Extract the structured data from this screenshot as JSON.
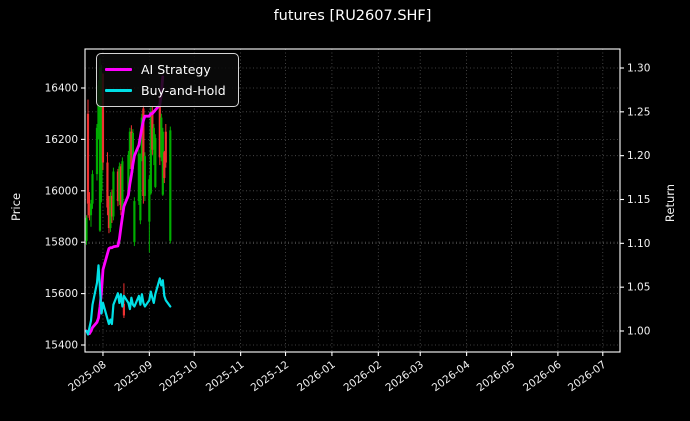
{
  "title": "futures [RU2607.SHF]",
  "legend": [
    {
      "label": "AI Strategy",
      "color": "#ff00ff"
    },
    {
      "label": "Buy-and-Hold",
      "color": "#00e0e6"
    }
  ],
  "axes": {
    "left_label": "Price",
    "right_label": "Return",
    "price_ticks": [
      "15400",
      "15600",
      "15800",
      "16000",
      "16200",
      "16400"
    ],
    "return_ticks": [
      "1.00",
      "1.05",
      "1.10",
      "1.15",
      "1.20",
      "1.25",
      "1.30"
    ],
    "x_ticks": [
      "2025-08",
      "2025-09",
      "2025-10",
      "2025-11",
      "2025-12",
      "2026-01",
      "2026-02",
      "2026-03",
      "2026-04",
      "2026-05",
      "2026-06",
      "2026-07"
    ]
  },
  "colors": {
    "background": "#000000",
    "spine": "#ffffff",
    "grid": "#5c5c5c",
    "candle_up": "#00ad00",
    "candle_down": "#f03131",
    "ai_strategy": "#ff00ff",
    "buy_and_hold": "#00e0e6",
    "text": "#f2f2f2"
  },
  "chart_data": {
    "type": "candlestick+line",
    "title": "futures [RU2607.SHF]",
    "xlabel": "",
    "ylabel_left": "Price",
    "ylabel_right": "Return",
    "grid": true,
    "legend_position": "upper left",
    "xlim": [
      "2025-07-20",
      "2026-07-12"
    ],
    "ylim_price": [
      15372,
      16552
    ],
    "ylim_return": [
      0.976,
      1.322
    ],
    "candles_ohlc": [
      [
        "2025-07-21",
        15805,
        15905,
        15790,
        15895
      ],
      [
        "2025-07-22",
        16300,
        16355,
        15895,
        15950
      ],
      [
        "2025-07-23",
        15950,
        15995,
        15885,
        15905
      ],
      [
        "2025-07-24",
        15905,
        15965,
        15860,
        15950
      ],
      [
        "2025-07-25",
        15950,
        16080,
        15930,
        16065
      ],
      [
        "2025-07-28",
        16065,
        16260,
        16040,
        16245
      ],
      [
        "2025-07-29",
        16245,
        16430,
        16200,
        16410
      ],
      [
        "2025-07-30",
        15845,
        16515,
        15840,
        16480
      ],
      [
        "2025-07-31",
        16000,
        16490,
        15955,
        16455
      ],
      [
        "2025-08-01",
        16455,
        16460,
        16080,
        16110
      ],
      [
        "2025-08-04",
        16110,
        16150,
        15905,
        15935
      ],
      [
        "2025-08-05",
        15935,
        15980,
        15835,
        15855
      ],
      [
        "2025-08-06",
        15855,
        15995,
        15840,
        15980
      ],
      [
        "2025-08-07",
        15980,
        16005,
        15875,
        15900
      ],
      [
        "2025-08-08",
        15900,
        16090,
        15885,
        16075
      ],
      [
        "2025-08-11",
        16075,
        16085,
        15940,
        15960
      ],
      [
        "2025-08-12",
        15960,
        16110,
        15945,
        16095
      ],
      [
        "2025-08-13",
        16095,
        16105,
        15905,
        15925
      ],
      [
        "2025-08-14",
        15925,
        16130,
        15910,
        16115
      ],
      [
        "2025-08-15",
        15560,
        15640,
        15505,
        15515
      ],
      [
        "2025-08-18",
        15985,
        16155,
        15970,
        16140
      ],
      [
        "2025-08-19",
        16140,
        16245,
        16085,
        16230
      ],
      [
        "2025-08-20",
        16230,
        16255,
        16065,
        16085
      ],
      [
        "2025-08-21",
        16085,
        16240,
        16070,
        16225
      ],
      [
        "2025-08-22",
        15800,
        15975,
        15785,
        15960
      ],
      [
        "2025-08-25",
        15960,
        16160,
        15945,
        16145
      ],
      [
        "2025-08-26",
        15885,
        16145,
        15870,
        16130
      ],
      [
        "2025-08-27",
        16130,
        16300,
        16115,
        16285
      ],
      [
        "2025-08-28",
        16320,
        16335,
        15950,
        15980
      ],
      [
        "2025-08-29",
        15980,
        16150,
        15960,
        16135
      ],
      [
        "2025-09-01",
        15880,
        16060,
        15760,
        16045
      ],
      [
        "2025-09-02",
        15990,
        16325,
        15985,
        16310
      ],
      [
        "2025-09-03",
        16310,
        16330,
        16140,
        16160
      ],
      [
        "2025-09-04",
        16160,
        16260,
        16100,
        16245
      ],
      [
        "2025-09-05",
        16015,
        16220,
        16010,
        16205
      ],
      [
        "2025-09-08",
        16360,
        16365,
        16100,
        16130
      ],
      [
        "2025-09-09",
        16130,
        16300,
        16115,
        16285
      ],
      [
        "2025-09-10",
        15985,
        16245,
        15980,
        16230
      ],
      [
        "2025-09-11",
        16150,
        16155,
        16030,
        16050
      ],
      [
        "2025-09-12",
        16230,
        16260,
        16090,
        16110
      ],
      [
        "2025-09-15",
        15805,
        16250,
        15795,
        16235
      ]
    ],
    "series": [
      {
        "name": "AI Strategy",
        "axis": "return",
        "color": "#ff00ff",
        "dates": [
          "2025-07-21",
          "2025-07-22",
          "2025-07-23",
          "2025-07-24",
          "2025-07-25",
          "2025-07-28",
          "2025-07-29",
          "2025-07-30",
          "2025-07-31",
          "2025-08-01",
          "2025-08-04",
          "2025-08-05",
          "2025-08-06",
          "2025-08-07",
          "2025-08-08",
          "2025-08-11",
          "2025-08-12",
          "2025-08-13",
          "2025-08-14",
          "2025-08-15",
          "2025-08-18",
          "2025-08-19",
          "2025-08-20",
          "2025-08-21",
          "2025-08-22",
          "2025-08-25",
          "2025-08-26",
          "2025-08-27",
          "2025-08-28",
          "2025-08-29",
          "2025-09-01",
          "2025-09-02",
          "2025-09-03",
          "2025-09-04",
          "2025-09-05",
          "2025-09-08",
          "2025-09-09",
          "2025-09-10"
        ],
        "values": [
          1.0,
          0.998,
          0.997,
          1.0,
          1.004,
          1.01,
          1.015,
          1.028,
          1.045,
          1.07,
          1.088,
          1.094,
          1.095,
          1.095,
          1.096,
          1.097,
          1.105,
          1.118,
          1.13,
          1.142,
          1.155,
          1.168,
          1.178,
          1.19,
          1.2,
          1.212,
          1.222,
          1.232,
          1.24,
          1.245,
          1.245,
          1.248,
          1.248,
          1.25,
          1.252,
          1.258,
          1.27,
          1.29
        ]
      },
      {
        "name": "Buy-and-Hold",
        "axis": "return",
        "color": "#00e0e6",
        "dates": [
          "2025-07-21",
          "2025-07-22",
          "2025-07-23",
          "2025-07-24",
          "2025-07-25",
          "2025-07-28",
          "2025-07-29",
          "2025-07-30",
          "2025-07-31",
          "2025-08-01",
          "2025-08-04",
          "2025-08-05",
          "2025-08-06",
          "2025-08-07",
          "2025-08-08",
          "2025-08-11",
          "2025-08-12",
          "2025-08-13",
          "2025-08-14",
          "2025-08-15",
          "2025-08-18",
          "2025-08-19",
          "2025-08-20",
          "2025-08-21",
          "2025-08-22",
          "2025-08-25",
          "2025-08-26",
          "2025-08-27",
          "2025-08-28",
          "2025-08-29",
          "2025-09-01",
          "2025-09-02",
          "2025-09-03",
          "2025-09-04",
          "2025-09-05",
          "2025-09-08",
          "2025-09-09",
          "2025-09-10",
          "2025-09-11",
          "2025-09-12",
          "2025-09-15"
        ],
        "values": [
          1.0,
          0.996,
          1.004,
          1.012,
          1.03,
          1.055,
          1.075,
          1.048,
          1.02,
          1.032,
          1.014,
          1.008,
          1.013,
          1.008,
          1.03,
          1.043,
          1.032,
          1.042,
          1.028,
          1.04,
          1.032,
          1.025,
          1.038,
          1.03,
          1.028,
          1.04,
          1.03,
          1.042,
          1.032,
          1.028,
          1.035,
          1.045,
          1.038,
          1.032,
          1.042,
          1.06,
          1.052,
          1.058,
          1.04,
          1.035,
          1.028
        ]
      }
    ]
  }
}
